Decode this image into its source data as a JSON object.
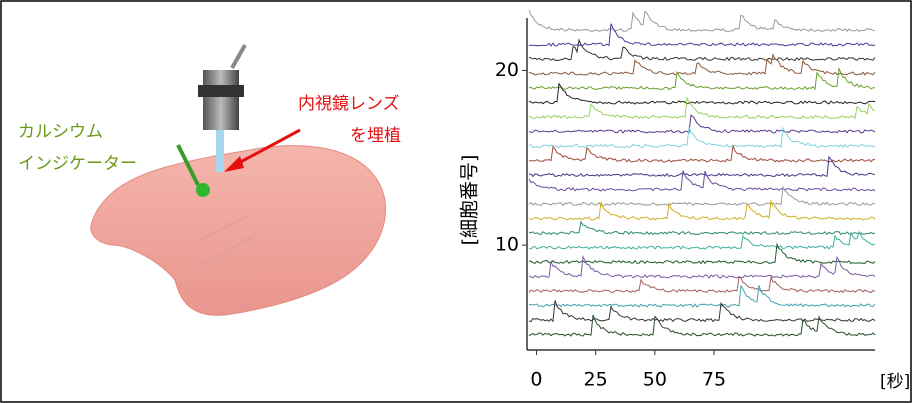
{
  "chart_data": {
    "type": "traces",
    "y_label": "[細胞番号]",
    "x_label": "[秒]",
    "xlim": [
      -4,
      143
    ],
    "xticks": [
      0,
      25,
      50,
      75
    ],
    "ylim": [
      4,
      23
    ],
    "yticks": [
      10,
      20
    ]
  },
  "illustration": {
    "indicator_label": [
      "カルシウム",
      "インジケーター"
    ],
    "lens_label": [
      "内視鏡レンズ",
      "を埋植"
    ]
  }
}
